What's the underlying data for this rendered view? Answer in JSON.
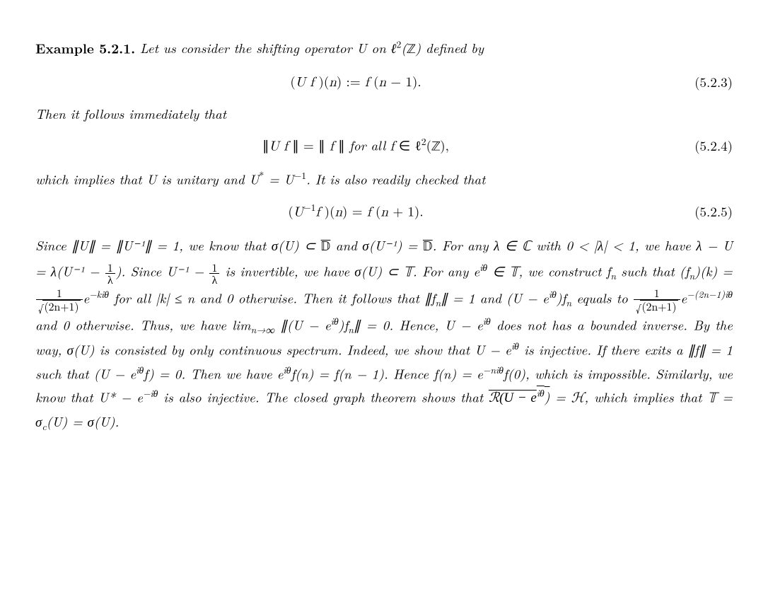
{
  "fontsize_body": 19,
  "fontsize_supsub": 13,
  "colors": {
    "text": "#000000",
    "background": "#ffffff"
  },
  "example": {
    "label": "Example 5.2.1.",
    "intro": "Let us consider the shifting operator U on ℓ²(ℤ) defined by"
  },
  "eq1": {
    "body": "(Uf)(n) := f(n − 1).",
    "number": "(5.2.3)"
  },
  "para2": "Then it follows immediately that",
  "eq2": {
    "body": "∥Uf∥ = ∥f∥ for all f ∈ ℓ²(ℤ),",
    "number": "(5.2.4)"
  },
  "para3": "which implies that U is unitary and U* = U⁻¹. It is also readily checked that",
  "eq3": {
    "body": "(U⁻¹f)(n) = f(n + 1).",
    "number": "(5.2.5)"
  },
  "para4_parts": {
    "a": "Since ∥U∥ = ∥U⁻¹∥ = 1, we know that σ(U) ⊂ ",
    "b": " and σ(U⁻¹) = ",
    "c": ". For any λ ∈ ℂ with 0 < |λ| < 1, we have λ − U = λ(U⁻¹ − ",
    "d": "). Since U⁻¹ − ",
    "e": " is invertible, we have σ(U) ⊂ 𝕋. For any e",
    "f": " ∈ 𝕋, we construct f",
    "g": " such that (f",
    "h": ")(k) = ",
    "i": " for all |k| ≤ n and 0 otherwise. Then it follows that ∥f",
    "j": "∥ = 1 and (U − e",
    "k": ")f",
    "l": " equals to ",
    "m": " and 0 otherwise. Thus, we have lim",
    "n": " ∥(U − e",
    "o": ")f",
    "p": "∥ = 0. Hence, U − e",
    "q": " does not has a bounded inverse. By the way, σ(U) is consisted by only continuous spectrum. Indeed, we show that U − e",
    "r": " is injective. If there exits a ∥f∥ = 1 such that (U − e",
    "s": "f) = 0. Then we have e",
    "t": "f(n) = f(n − 1). Hence f(n) = e",
    "u": "f(0), which is impossible. Similarly, we know that U* − e",
    "v": " is also injective. The closed graph theorem shows that ",
    "w": " = ℋ, which implies that 𝕋 = σ",
    "x": "(U) = σ(U)."
  },
  "sym": {
    "Dbar": "𝔻",
    "frac_1_lambda_num": "1",
    "frac_1_lambda_den": "λ",
    "itheta": "iθ",
    "sub_n": "n",
    "frac_num1": "1",
    "frac_den1_inner": "(2n+1)",
    "exp_mkitheta": "−kiθ",
    "exp_m2n1itheta": "−(2n−1)iθ",
    "lim_sub": "n→∞",
    "exp_mnitheta": "−niθ",
    "exp_mitheta": "−iθ",
    "range": "ℛ(U − e",
    "range_close": ")",
    "sub_c": "c"
  }
}
